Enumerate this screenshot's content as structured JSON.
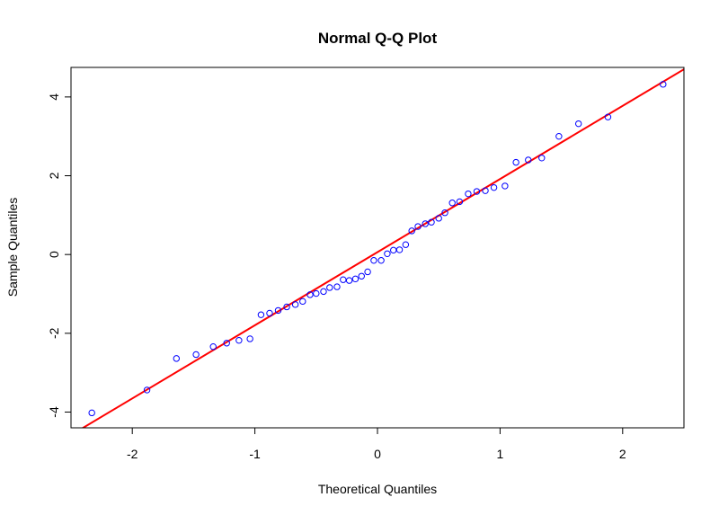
{
  "chart_data": {
    "type": "scatter",
    "title": "Normal Q-Q Plot",
    "xlabel": "Theoretical Quantiles",
    "ylabel": "Sample Quantiles",
    "xlim": [
      -2.5,
      2.5
    ],
    "ylim": [
      -4.4,
      4.75
    ],
    "xticks": [
      -2,
      -1,
      0,
      1,
      2
    ],
    "yticks": [
      -4,
      -2,
      0,
      2,
      4
    ],
    "grid": false,
    "point_color": "#0000ff",
    "line_color": "#ff0000",
    "reference_line": {
      "slope": 1.857,
      "intercept": 0.06
    },
    "series": [
      {
        "points": [
          [
            -2.33,
            -4.02
          ],
          [
            -1.88,
            -3.44
          ],
          [
            -1.64,
            -2.64
          ],
          [
            -1.48,
            -2.54
          ],
          [
            -1.34,
            -2.34
          ],
          [
            -1.23,
            -2.25
          ],
          [
            -1.13,
            -2.18
          ],
          [
            -1.04,
            -2.14
          ],
          [
            -0.95,
            -1.53
          ],
          [
            -0.88,
            -1.49
          ],
          [
            -0.81,
            -1.42
          ],
          [
            -0.74,
            -1.33
          ],
          [
            -0.67,
            -1.27
          ],
          [
            -0.61,
            -1.19
          ],
          [
            -0.55,
            -1.02
          ],
          [
            -0.5,
            -0.99
          ],
          [
            -0.44,
            -0.94
          ],
          [
            -0.39,
            -0.84
          ],
          [
            -0.33,
            -0.82
          ],
          [
            -0.28,
            -0.64
          ],
          [
            -0.23,
            -0.66
          ],
          [
            -0.18,
            -0.62
          ],
          [
            -0.13,
            -0.55
          ],
          [
            -0.08,
            -0.44
          ],
          [
            -0.03,
            -0.15
          ],
          [
            0.03,
            -0.15
          ],
          [
            0.08,
            0.02
          ],
          [
            0.13,
            0.11
          ],
          [
            0.18,
            0.12
          ],
          [
            0.23,
            0.25
          ],
          [
            0.28,
            0.6
          ],
          [
            0.33,
            0.71
          ],
          [
            0.39,
            0.78
          ],
          [
            0.44,
            0.82
          ],
          [
            0.5,
            0.92
          ],
          [
            0.55,
            1.06
          ],
          [
            0.61,
            1.31
          ],
          [
            0.67,
            1.34
          ],
          [
            0.74,
            1.54
          ],
          [
            0.81,
            1.6
          ],
          [
            0.88,
            1.62
          ],
          [
            0.95,
            1.7
          ],
          [
            1.04,
            1.74
          ],
          [
            1.13,
            2.34
          ],
          [
            1.23,
            2.4
          ],
          [
            1.34,
            2.45
          ],
          [
            1.48,
            3.0
          ],
          [
            1.64,
            3.32
          ],
          [
            1.88,
            3.49
          ],
          [
            2.33,
            4.32
          ]
        ]
      }
    ]
  }
}
